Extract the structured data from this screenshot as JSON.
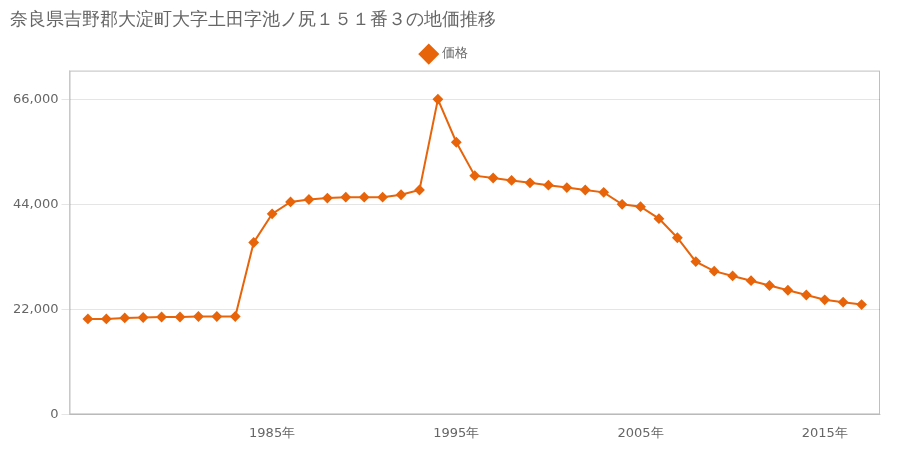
{
  "chart_data": {
    "type": "line",
    "title": "奈良県吉野郡大淀町大字土田字池ノ尻１５１番３の地価推移",
    "x": [
      1975,
      1976,
      1977,
      1978,
      1979,
      1980,
      1981,
      1982,
      1983,
      1984,
      1985,
      1986,
      1987,
      1988,
      1989,
      1990,
      1991,
      1992,
      1993,
      1994,
      1995,
      1996,
      1997,
      1998,
      1999,
      2000,
      2001,
      2002,
      2003,
      2004,
      2005,
      2006,
      2007,
      2008,
      2009,
      2010,
      2011,
      2012,
      2013,
      2014,
      2015,
      2016,
      2017
    ],
    "series": [
      {
        "name": "価格",
        "color": "#E8640A",
        "marker": "diamond",
        "values": [
          20000,
          20000,
          20200,
          20300,
          20400,
          20400,
          20500,
          20500,
          20500,
          36000,
          42000,
          44500,
          45000,
          45300,
          45500,
          45500,
          45500,
          46000,
          47000,
          66000,
          57000,
          50000,
          49500,
          49000,
          48500,
          48000,
          47500,
          47000,
          46500,
          44000,
          43500,
          41000,
          37000,
          32000,
          30000,
          29000,
          28000,
          27000,
          26000,
          25000,
          24000,
          23500,
          23000
        ]
      }
    ],
    "xlim": [
      1974,
      2018
    ],
    "xticks": [
      {
        "value": 1985,
        "label": "1985年"
      },
      {
        "value": 1995,
        "label": "1995年"
      },
      {
        "value": 2005,
        "label": "2005年"
      },
      {
        "value": 2015,
        "label": "2015年"
      }
    ],
    "ylim": [
      0,
      72000
    ],
    "yticks": [
      0,
      {
        "value": 22000,
        "label": "22,000"
      },
      {
        "value": 44000,
        "label": "44,000"
      },
      {
        "value": 66000,
        "label": "66,000"
      }
    ],
    "grid": "y",
    "legend": "top"
  }
}
